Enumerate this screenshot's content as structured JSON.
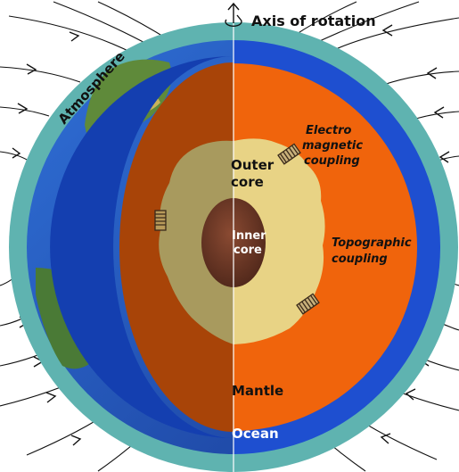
{
  "labels": {
    "axis": "Axis of rotation",
    "atmosphere": "Atmosphere",
    "em_line1": "Electro",
    "em_line2": "magnetic",
    "em_line3": "coupling",
    "outer_line1": "Outer",
    "outer_line2": "core",
    "inner_line1": "Inner",
    "inner_line2": "core",
    "topo_line1": "Topographic",
    "topo_line2": "coupling",
    "mantle": "Mantle",
    "ocean": "Ocean"
  },
  "colors": {
    "atmosphere": "#5fb3b0",
    "ocean_ring": "#1e4fd0",
    "mantle_lit": "#f0640c",
    "mantle_shadow": "#a84408",
    "outer_core": "#e8d385",
    "outer_core_shadow": "#a89a5e",
    "inner_core": "#6b3a28"
  },
  "icons": [
    "coupling-spring-icon",
    "rotation-arrow-icon",
    "field-line-arrow-icon"
  ]
}
